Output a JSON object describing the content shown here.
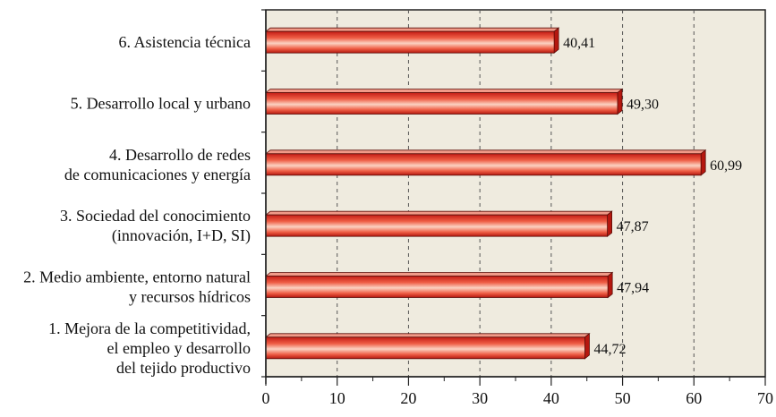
{
  "chart_data": {
    "type": "bar",
    "orientation": "horizontal",
    "style": "3d",
    "categories": [
      [
        "6. Asistencia técnica"
      ],
      [
        "5. Desarrollo local y urbano"
      ],
      [
        "4. Desarrollo de redes",
        "de comunicaciones y energía"
      ],
      [
        "3. Sociedad del conocimiento",
        "(innovación, I+D, SI)"
      ],
      [
        "2. Medio ambiente, entorno natural",
        "y recursos hídricos"
      ],
      [
        "1. Mejora de la competitividad,",
        "el empleo y desarrollo",
        "del tejido productivo"
      ]
    ],
    "values": [
      40.41,
      49.3,
      60.99,
      47.87,
      47.94,
      44.72
    ],
    "value_labels": [
      "40,41",
      "49,30",
      "60,99",
      "47,87",
      "47,94",
      "44,72"
    ],
    "xlim": [
      0,
      70
    ],
    "xticks": [
      0,
      10,
      20,
      30,
      40,
      50,
      60,
      70
    ],
    "grid": "vertical dashed",
    "colors": {
      "plot_background": "#efebdf",
      "bar_dark": "#d8261e",
      "bar_light": "#fbd2c2",
      "bar_top": "#f19a88",
      "bar_end": "#b5170f",
      "axis": "#222222",
      "grid": "#555555"
    }
  }
}
